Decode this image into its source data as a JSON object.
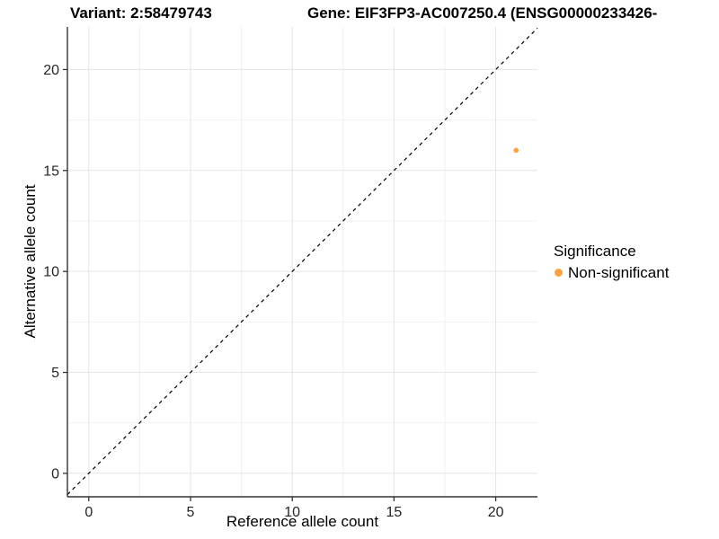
{
  "titles": {
    "variant": "Variant: 2:58479743",
    "gene": "Gene: EIF3FP3-AC007250.4 (ENSG00000233426-"
  },
  "chart_data": {
    "type": "scatter",
    "title_left": "Variant: 2:58479743",
    "title_right": "Gene: EIF3FP3-AC007250.4 (ENSG00000233426-",
    "xlabel": "Reference allele count",
    "ylabel": "Alternative allele count",
    "xlim": [
      -1.05,
      22.05
    ],
    "ylim": [
      -1.16,
      22.11
    ],
    "xticks": [
      0,
      5,
      10,
      15,
      20
    ],
    "yticks": [
      0,
      5,
      10,
      15,
      20
    ],
    "grid": {
      "major": true,
      "minor": true
    },
    "reference_line": {
      "equation": "y = x",
      "slope": 1,
      "intercept": 0,
      "style": "dashed",
      "color": "#000000"
    },
    "series": [
      {
        "name": "Non-significant",
        "color": "#F9A242",
        "points": [
          {
            "x": 21,
            "y": 16
          }
        ]
      }
    ],
    "legend": {
      "title": "Significance",
      "position": "right",
      "items": [
        {
          "label": "Non-significant",
          "color": "#F9A242"
        }
      ]
    }
  }
}
